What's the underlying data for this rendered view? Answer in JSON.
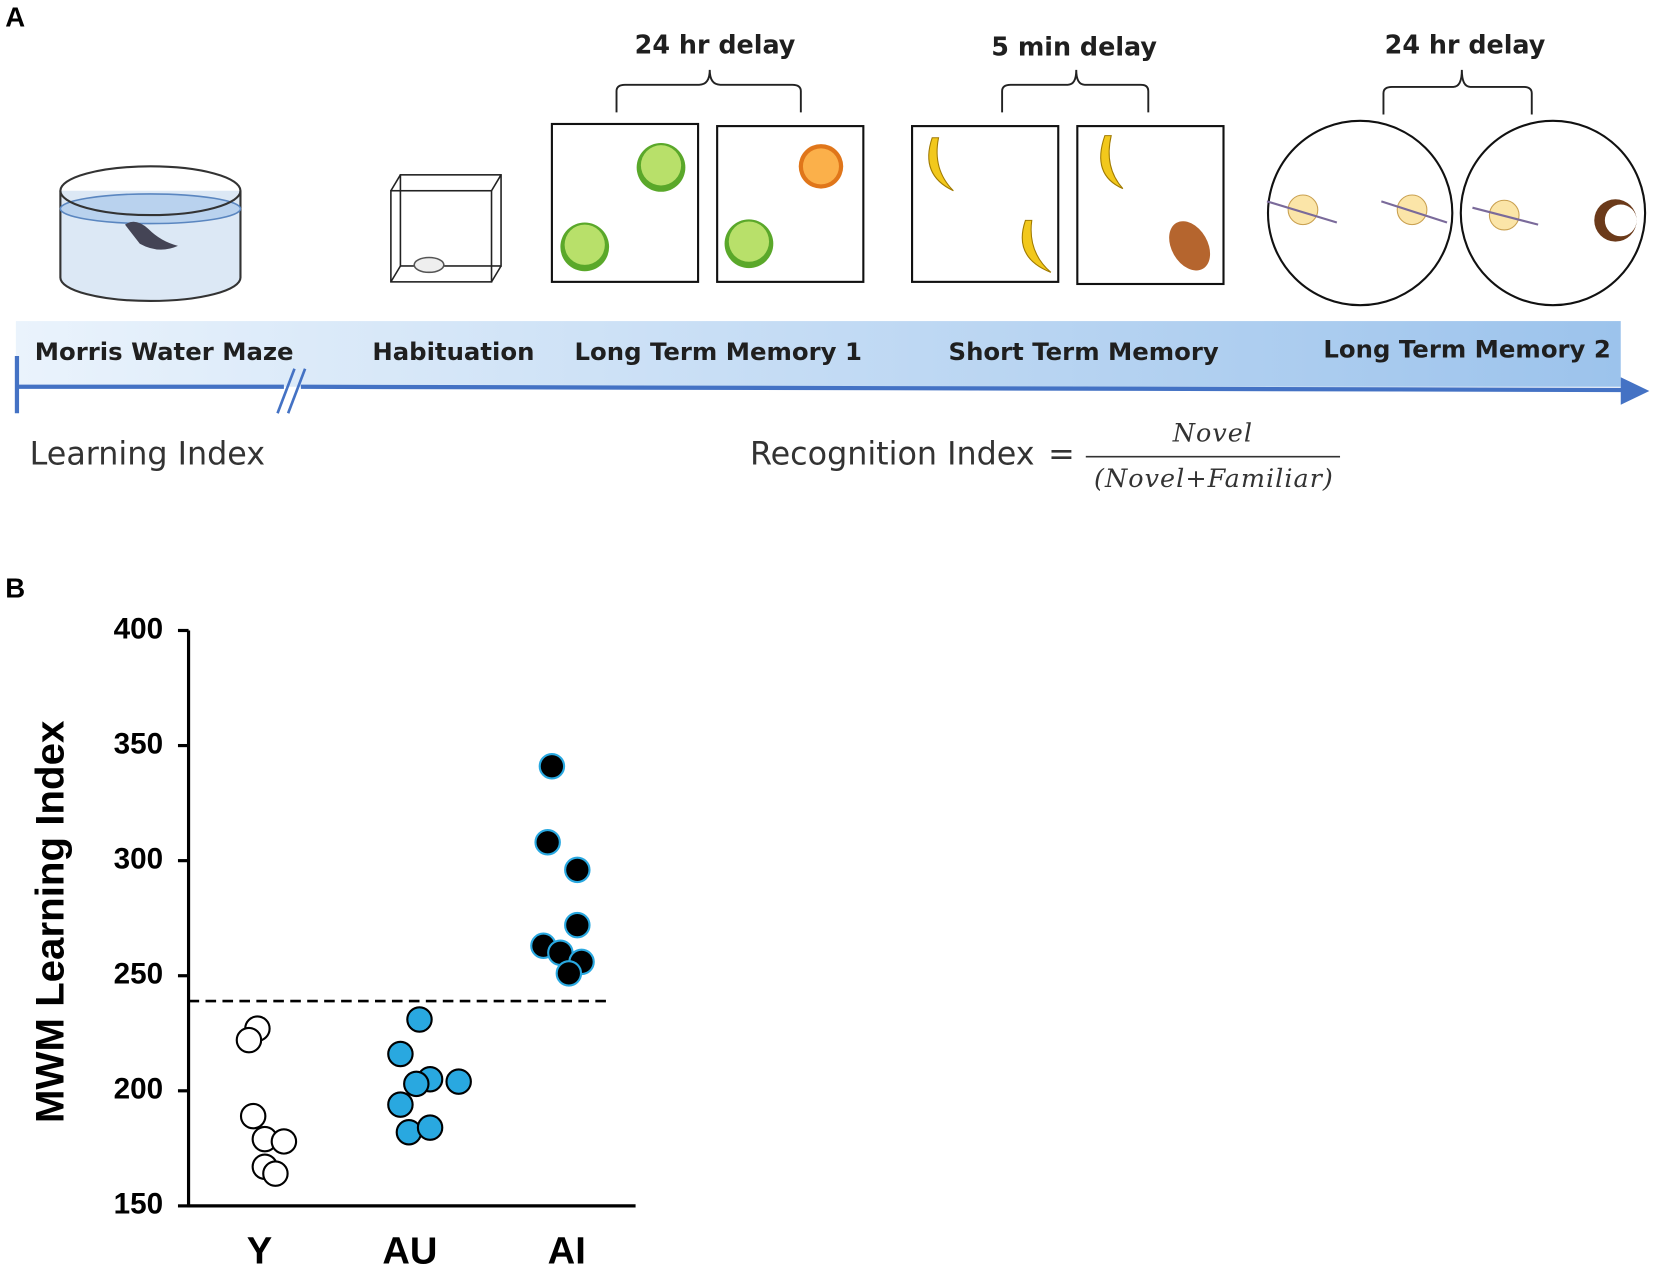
{
  "panel_a": {
    "label": "A",
    "delays": [
      "24 hr delay",
      "5 min delay",
      "24 hr delay"
    ],
    "stages": [
      "Morris Water Maze",
      "Habituation",
      "Long Term Memory 1",
      "Short Term Memory",
      "Long Term Memory 2"
    ],
    "learning_index": "Learning Index",
    "recognition_index": "Recognition Index",
    "equals": "=",
    "numerator": "Novel",
    "denominator": "(Novel+Familiar)"
  },
  "chart_data": {
    "type": "scatter",
    "panel_label": "B",
    "y_label": "MWM Learning Index",
    "categories": [
      "Y",
      "AU",
      "AI"
    ],
    "series": [
      {
        "name": "Y",
        "color": "#ffffff",
        "values": [
          227,
          222,
          189,
          179,
          178,
          167,
          164
        ]
      },
      {
        "name": "AU",
        "color": "#29a8e0",
        "values": [
          231,
          216,
          204,
          205,
          203,
          194,
          182,
          184
        ]
      },
      {
        "name": "AI",
        "color": "#000000",
        "values": [
          341,
          308,
          296,
          272,
          263,
          260,
          256,
          251
        ]
      }
    ],
    "threshold": 239,
    "ylim": [
      150,
      400
    ],
    "yticks": [
      150,
      200,
      250,
      300,
      350,
      400
    ]
  }
}
